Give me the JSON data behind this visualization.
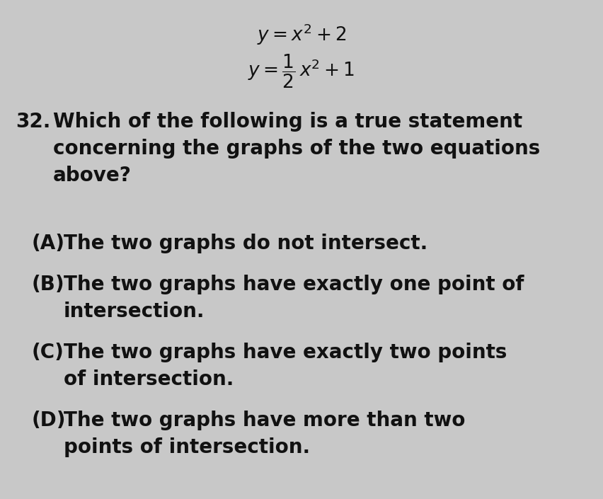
{
  "background_color": "#c8c8c8",
  "text_color": "#111111",
  "eq1_latex": "$y = x^2 + 2$",
  "eq2_latex": "$y = \\dfrac{1}{2}\\,x^2 + 1$",
  "question_number": "32.",
  "q_line1": "Which of the following is a true statement",
  "q_line2": "concerning the graphs of the two equations",
  "q_line3": "above?",
  "opt_A_label": "(A)",
  "opt_A_line1": "The two graphs do not intersect.",
  "opt_B_label": "(B)",
  "opt_B_line1": "The two graphs have exactly one point of",
  "opt_B_line2": "intersection.",
  "opt_C_label": "(C)",
  "opt_C_line1": "The two graphs have exactly two points",
  "opt_C_line2": "of intersection.",
  "opt_D_label": "(D)",
  "opt_D_line1": "The two graphs have more than two",
  "opt_D_line2": "points of intersection.",
  "font_size_eq": 19,
  "font_size_text": 20,
  "font_weight": "bold"
}
